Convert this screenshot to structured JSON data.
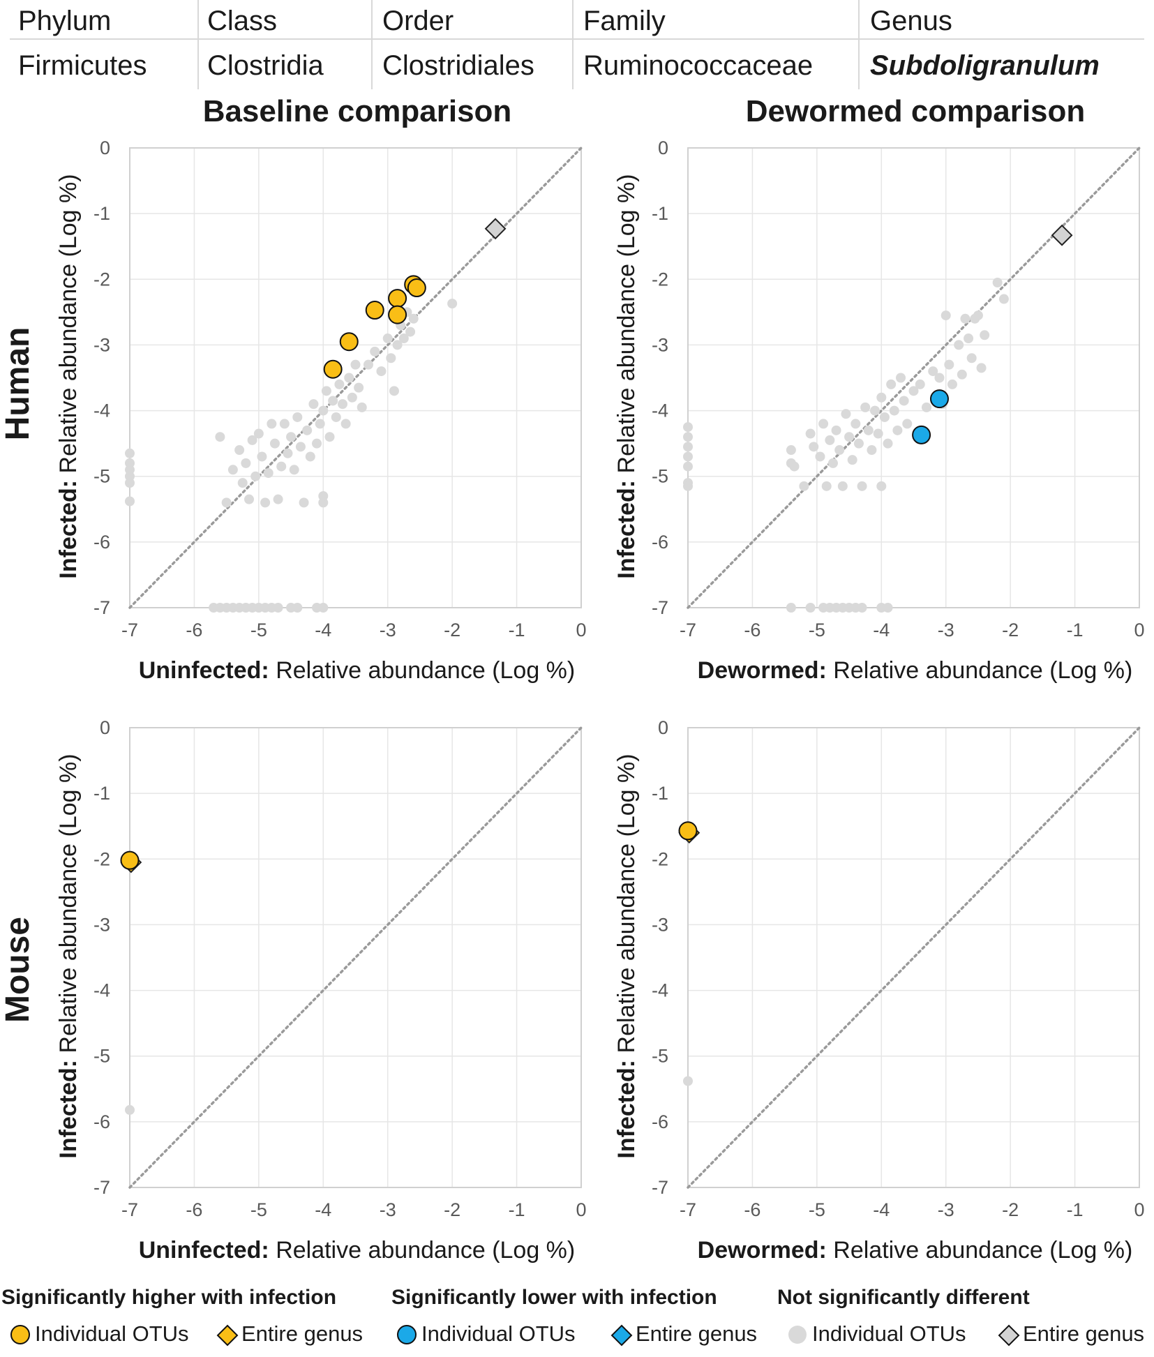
{
  "taxonomy": {
    "headers": [
      "Phylum",
      "Class",
      "Order",
      "Family",
      "Genus"
    ],
    "values": [
      "Firmicutes",
      "Clostridia",
      "Clostridiales",
      "Ruminococcaceae",
      "Subdoligranulum"
    ]
  },
  "columns": [
    "Baseline comparison",
    "Dewormed comparison"
  ],
  "rows": [
    "Human",
    "Mouse"
  ],
  "colors": {
    "higher": "#F9BE16",
    "lower": "#1BA9E8",
    "notsig": "#D9D9D9",
    "genus_notsig": "#D3D3D3",
    "diagonal": "#9A9A9A",
    "grid": "#E6E6E6"
  },
  "legend": {
    "groups": [
      {
        "title": "Significantly higher with infection",
        "otu": "Individual OTUs",
        "genus": "Entire genus",
        "color": "#F9BE16"
      },
      {
        "title": "Significantly lower with infection",
        "otu": "Individual OTUs",
        "genus": "Entire genus",
        "color": "#1BA9E8"
      },
      {
        "title": "Not significantly different",
        "otu": "Individual OTUs",
        "genus": "Entire genus",
        "color": "#D9D9D9"
      }
    ]
  },
  "chart_data": [
    {
      "id": "human-baseline",
      "type": "scatter",
      "title": "Baseline comparison",
      "row_label": "Human",
      "xlabel_bold": "Uninfected:",
      "xlabel": "Relative abundance (Log %)",
      "ylabel_bold": "Infected:",
      "ylabel": "Relative abundance (Log %)",
      "xlim": [
        -7,
        0
      ],
      "ylim": [
        -7,
        0
      ],
      "xticks": [
        "-7",
        "-6",
        "-5",
        "-4",
        "-3",
        "-2",
        "-1",
        "0"
      ],
      "yticks": [
        "0",
        "-1",
        "-2",
        "-3",
        "-4",
        "-5",
        "-6",
        "-7"
      ],
      "series": [
        {
          "name": "Not significantly different: Individual OTUs",
          "marker": "dot",
          "color": "#D9D9D9",
          "points": [
            [
              -7,
              -4.65
            ],
            [
              -7,
              -4.8
            ],
            [
              -7,
              -4.9
            ],
            [
              -7,
              -5.0
            ],
            [
              -7,
              -5.1
            ],
            [
              -7,
              -5.38
            ],
            [
              -5.6,
              -4.4
            ],
            [
              -5.5,
              -5.4
            ],
            [
              -5.4,
              -4.9
            ],
            [
              -5.3,
              -4.6
            ],
            [
              -5.25,
              -5.1
            ],
            [
              -5.2,
              -4.8
            ],
            [
              -5.15,
              -5.35
            ],
            [
              -5.1,
              -4.45
            ],
            [
              -5.05,
              -5.0
            ],
            [
              -5.0,
              -4.35
            ],
            [
              -4.95,
              -4.7
            ],
            [
              -4.9,
              -5.4
            ],
            [
              -4.85,
              -4.95
            ],
            [
              -4.8,
              -4.2
            ],
            [
              -4.75,
              -4.5
            ],
            [
              -4.7,
              -5.35
            ],
            [
              -4.65,
              -4.85
            ],
            [
              -4.6,
              -4.2
            ],
            [
              -4.55,
              -4.65
            ],
            [
              -4.5,
              -4.4
            ],
            [
              -4.45,
              -4.9
            ],
            [
              -4.4,
              -4.1
            ],
            [
              -4.35,
              -4.55
            ],
            [
              -4.3,
              -5.4
            ],
            [
              -4.25,
              -4.3
            ],
            [
              -4.2,
              -4.7
            ],
            [
              -4.15,
              -3.9
            ],
            [
              -4.1,
              -4.5
            ],
            [
              -4.05,
              -4.2
            ],
            [
              -4.0,
              -5.4
            ],
            [
              -4.0,
              -5.3
            ],
            [
              -4.0,
              -4.0
            ],
            [
              -3.95,
              -3.7
            ],
            [
              -3.9,
              -4.4
            ],
            [
              -3.85,
              -3.85
            ],
            [
              -3.8,
              -4.1
            ],
            [
              -3.75,
              -3.6
            ],
            [
              -3.7,
              -3.9
            ],
            [
              -3.65,
              -4.2
            ],
            [
              -3.6,
              -3.5
            ],
            [
              -3.55,
              -3.8
            ],
            [
              -3.5,
              -3.3
            ],
            [
              -3.45,
              -3.65
            ],
            [
              -3.4,
              -3.95
            ],
            [
              -3.3,
              -3.3
            ],
            [
              -3.2,
              -3.1
            ],
            [
              -3.1,
              -3.4
            ],
            [
              -3.0,
              -2.9
            ],
            [
              -2.95,
              -3.2
            ],
            [
              -2.9,
              -3.7
            ],
            [
              -2.85,
              -3.0
            ],
            [
              -2.8,
              -2.7
            ],
            [
              -2.75,
              -2.9
            ],
            [
              -2.7,
              -2.5
            ],
            [
              -2.65,
              -2.8
            ],
            [
              -2.6,
              -2.6
            ],
            [
              -2.0,
              -2.37
            ],
            [
              -5.7,
              -7
            ],
            [
              -5.6,
              -7
            ],
            [
              -5.5,
              -7
            ],
            [
              -5.4,
              -7
            ],
            [
              -5.3,
              -7
            ],
            [
              -5.2,
              -7
            ],
            [
              -5.1,
              -7
            ],
            [
              -5.0,
              -7
            ],
            [
              -4.9,
              -7
            ],
            [
              -4.8,
              -7
            ],
            [
              -4.7,
              -7
            ],
            [
              -4.5,
              -7
            ],
            [
              -4.4,
              -7
            ],
            [
              -4.1,
              -7
            ],
            [
              -4.0,
              -7
            ]
          ]
        },
        {
          "name": "Significantly higher with infection: Individual OTUs",
          "marker": "circle",
          "color": "#F9BE16",
          "points": [
            [
              -3.85,
              -3.37
            ],
            [
              -3.6,
              -2.95
            ],
            [
              -3.2,
              -2.47
            ],
            [
              -2.85,
              -2.29
            ],
            [
              -2.85,
              -2.54
            ],
            [
              -2.6,
              -2.08
            ],
            [
              -2.55,
              -2.13
            ]
          ]
        },
        {
          "name": "Not significantly different: Entire genus",
          "marker": "diamond",
          "color": "#D3D3D3",
          "points": [
            [
              -1.33,
              -1.23
            ]
          ]
        }
      ]
    },
    {
      "id": "human-dewormed",
      "type": "scatter",
      "title": "Dewormed comparison",
      "row_label": "Human",
      "xlabel_bold": "Dewormed:",
      "xlabel": "Relative abundance (Log %)",
      "ylabel_bold": "Infected:",
      "ylabel": "Relative abundance (Log %)",
      "xlim": [
        -7,
        0
      ],
      "ylim": [
        -7,
        0
      ],
      "xticks": [
        "-7",
        "-6",
        "-5",
        "-4",
        "-3",
        "-2",
        "-1",
        "0"
      ],
      "yticks": [
        "0",
        "-1",
        "-2",
        "-3",
        "-4",
        "-5",
        "-6",
        "-7"
      ],
      "series": [
        {
          "name": "Not significantly different: Individual OTUs",
          "marker": "dot",
          "color": "#D9D9D9",
          "points": [
            [
              -7,
              -4.25
            ],
            [
              -7,
              -4.4
            ],
            [
              -7,
              -4.55
            ],
            [
              -7,
              -4.7
            ],
            [
              -7,
              -4.85
            ],
            [
              -7,
              -5.1
            ],
            [
              -7,
              -5.15
            ],
            [
              -5.4,
              -4.6
            ],
            [
              -5.4,
              -4.8
            ],
            [
              -5.35,
              -4.85
            ],
            [
              -5.2,
              -5.15
            ],
            [
              -5.1,
              -4.35
            ],
            [
              -5.05,
              -4.55
            ],
            [
              -4.95,
              -4.7
            ],
            [
              -4.9,
              -4.2
            ],
            [
              -4.85,
              -5.15
            ],
            [
              -4.8,
              -4.45
            ],
            [
              -4.75,
              -4.8
            ],
            [
              -4.7,
              -4.3
            ],
            [
              -4.65,
              -4.6
            ],
            [
              -4.6,
              -5.15
            ],
            [
              -4.55,
              -4.05
            ],
            [
              -4.5,
              -4.4
            ],
            [
              -4.45,
              -4.75
            ],
            [
              -4.4,
              -4.2
            ],
            [
              -4.35,
              -4.5
            ],
            [
              -4.3,
              -5.15
            ],
            [
              -4.25,
              -3.95
            ],
            [
              -4.2,
              -4.3
            ],
            [
              -4.15,
              -4.6
            ],
            [
              -4.1,
              -4.0
            ],
            [
              -4.05,
              -4.35
            ],
            [
              -4.0,
              -5.15
            ],
            [
              -4.0,
              -3.8
            ],
            [
              -3.95,
              -4.1
            ],
            [
              -3.9,
              -4.5
            ],
            [
              -3.85,
              -3.6
            ],
            [
              -3.8,
              -4.0
            ],
            [
              -3.75,
              -4.3
            ],
            [
              -3.7,
              -3.5
            ],
            [
              -3.65,
              -3.85
            ],
            [
              -3.6,
              -4.2
            ],
            [
              -3.5,
              -3.7
            ],
            [
              -3.4,
              -3.6
            ],
            [
              -3.3,
              -3.95
            ],
            [
              -3.2,
              -3.4
            ],
            [
              -3.1,
              -3.5
            ],
            [
              -3.05,
              -3.9
            ],
            [
              -3.0,
              -2.55
            ],
            [
              -2.95,
              -3.3
            ],
            [
              -2.9,
              -3.6
            ],
            [
              -2.8,
              -3.0
            ],
            [
              -2.75,
              -3.45
            ],
            [
              -2.7,
              -2.6
            ],
            [
              -2.65,
              -2.9
            ],
            [
              -2.6,
              -3.2
            ],
            [
              -2.55,
              -2.6
            ],
            [
              -2.5,
              -2.55
            ],
            [
              -2.45,
              -3.35
            ],
            [
              -2.4,
              -2.85
            ],
            [
              -2.2,
              -2.05
            ],
            [
              -2.1,
              -2.3
            ],
            [
              -5.4,
              -7
            ],
            [
              -5.1,
              -7
            ],
            [
              -4.9,
              -7
            ],
            [
              -4.8,
              -7
            ],
            [
              -4.7,
              -7
            ],
            [
              -4.6,
              -7
            ],
            [
              -4.5,
              -7
            ],
            [
              -4.4,
              -7
            ],
            [
              -4.3,
              -7
            ],
            [
              -4.0,
              -7
            ],
            [
              -3.9,
              -7
            ]
          ]
        },
        {
          "name": "Significantly lower with infection: Individual OTUs",
          "marker": "circle",
          "color": "#1BA9E8",
          "points": [
            [
              -3.1,
              -3.82
            ],
            [
              -3.38,
              -4.37
            ]
          ]
        },
        {
          "name": "Not significantly different: Entire genus",
          "marker": "diamond",
          "color": "#D3D3D3",
          "points": [
            [
              -1.2,
              -1.33
            ]
          ]
        }
      ]
    },
    {
      "id": "mouse-baseline",
      "type": "scatter",
      "title": "Baseline comparison",
      "row_label": "Mouse",
      "xlabel_bold": "Uninfected:",
      "xlabel": "Relative abundance (Log %)",
      "ylabel_bold": "Infected:",
      "ylabel": "Relative abundance (Log %)",
      "xlim": [
        -7,
        0
      ],
      "ylim": [
        -7,
        0
      ],
      "xticks": [
        "-7",
        "-6",
        "-5",
        "-4",
        "-3",
        "-2",
        "-1",
        "0"
      ],
      "yticks": [
        "0",
        "-1",
        "-2",
        "-3",
        "-4",
        "-5",
        "-6",
        "-7"
      ],
      "series": [
        {
          "name": "Not significantly different: Individual OTUs",
          "marker": "dot",
          "color": "#D9D9D9",
          "points": [
            [
              -7,
              -5.82
            ]
          ]
        },
        {
          "name": "Significantly higher with infection: Entire genus",
          "marker": "diamond",
          "color": "#F9BE16",
          "points": [
            [
              -6.98,
              -2.05
            ]
          ]
        },
        {
          "name": "Significantly higher with infection: Individual OTUs",
          "marker": "circle",
          "color": "#F9BE16",
          "points": [
            [
              -7,
              -2.02
            ]
          ]
        }
      ]
    },
    {
      "id": "mouse-dewormed",
      "type": "scatter",
      "title": "Dewormed comparison",
      "row_label": "Mouse",
      "xlabel_bold": "Dewormed:",
      "xlabel": "Relative abundance (Log %)",
      "ylabel_bold": "Infected:",
      "ylabel": "Relative abundance (Log %)",
      "xlim": [
        -7,
        0
      ],
      "ylim": [
        -7,
        0
      ],
      "xticks": [
        "-7",
        "-6",
        "-5",
        "-4",
        "-3",
        "-2",
        "-1",
        "0"
      ],
      "yticks": [
        "0",
        "-1",
        "-2",
        "-3",
        "-4",
        "-5",
        "-6",
        "-7"
      ],
      "series": [
        {
          "name": "Not significantly different: Individual OTUs",
          "marker": "dot",
          "color": "#D9D9D9",
          "points": [
            [
              -7,
              -5.38
            ]
          ]
        },
        {
          "name": "Significantly higher with infection: Entire genus",
          "marker": "diamond",
          "color": "#F9BE16",
          "points": [
            [
              -6.98,
              -1.6
            ]
          ]
        },
        {
          "name": "Significantly higher with infection: Individual OTUs",
          "marker": "circle",
          "color": "#F9BE16",
          "points": [
            [
              -7,
              -1.57
            ]
          ]
        }
      ]
    }
  ]
}
